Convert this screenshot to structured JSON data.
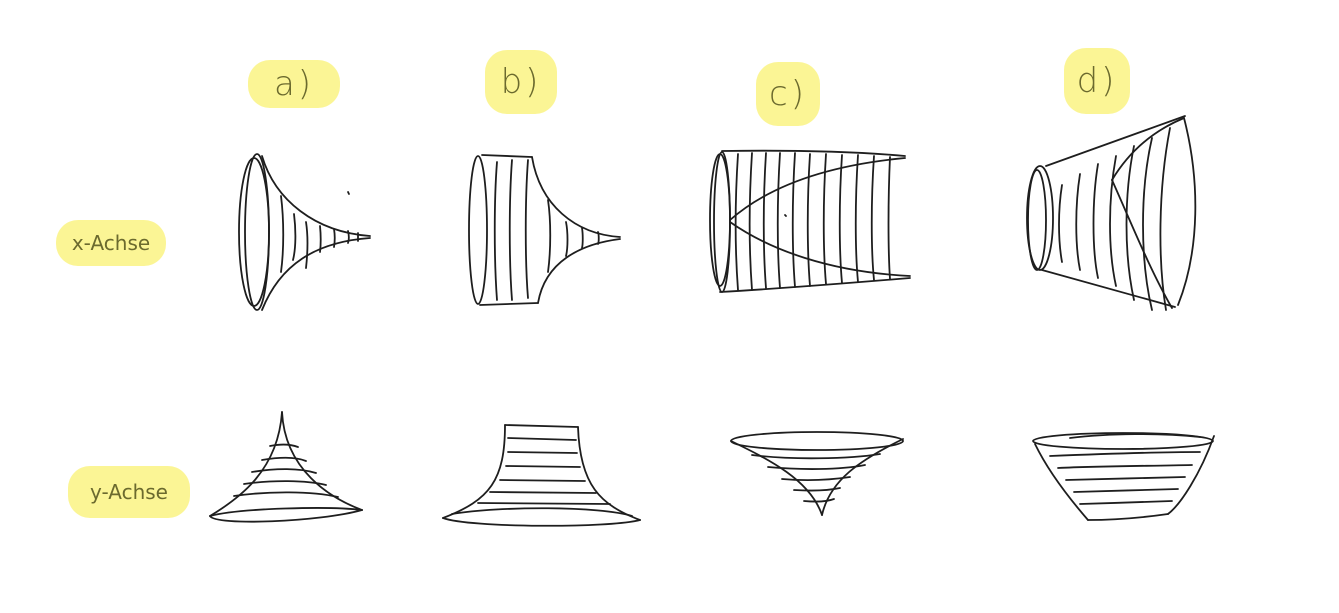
{
  "columns": [
    {
      "label": "a)"
    },
    {
      "label": "b)"
    },
    {
      "label": "c)"
    },
    {
      "label": "d)"
    }
  ],
  "rows": [
    {
      "label": "x-Achse"
    },
    {
      "label": "y-Achse"
    }
  ],
  "colors": {
    "highlight": "#fbf48c",
    "label_text": "#6b6a2e",
    "stroke": "#1e1e1e",
    "background": "#ffffff"
  }
}
